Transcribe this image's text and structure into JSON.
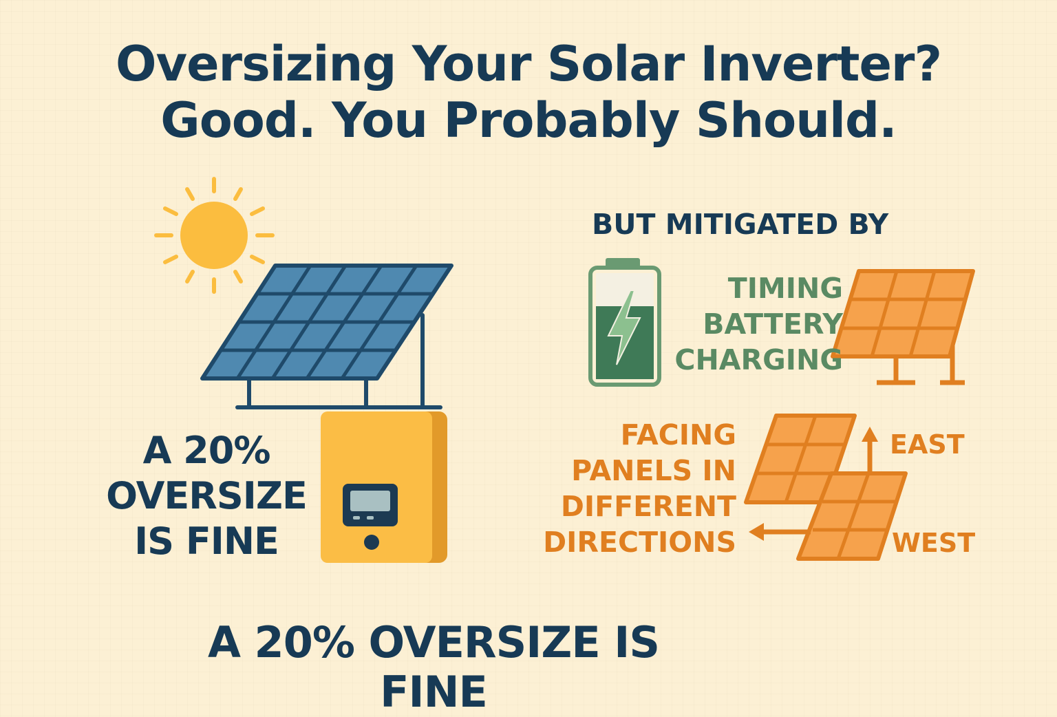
{
  "title": {
    "line1": "Oversizing Your Solar Inverter?",
    "line2": "Good. You Probably Should."
  },
  "left_caption": {
    "line1": "A 20%",
    "line2": "OVERSIZE",
    "line3": "IS FINE"
  },
  "mitigation": {
    "heading": "BUT MITIGATED BY",
    "timing": {
      "line1": "TIMING",
      "line2": "BATTERY",
      "line3": "CHARGING"
    },
    "facing": {
      "line1": "FACING",
      "line2": "PANELS IN",
      "line3": "DIFFERENT",
      "line4": "DIRECTIONS"
    },
    "east_label": "EAST",
    "west_label": "WEST"
  },
  "bottom_caption": "A 20% OVERSIZE IS FINE",
  "colors": {
    "background": "#fcf0d4",
    "navy": "#173a55",
    "green": "#5a8a63",
    "orange": "#e07f20",
    "sun": "#fbbd3f",
    "panel_blue": "#4f89b0",
    "inverter_yellow": "#fbbd45"
  },
  "icons": [
    "sun-icon",
    "solar-panel-icon",
    "inverter-icon",
    "battery-icon",
    "orange-solar-panel-icon",
    "east-west-panels-icon",
    "arrow-up-icon",
    "arrow-left-icon"
  ]
}
